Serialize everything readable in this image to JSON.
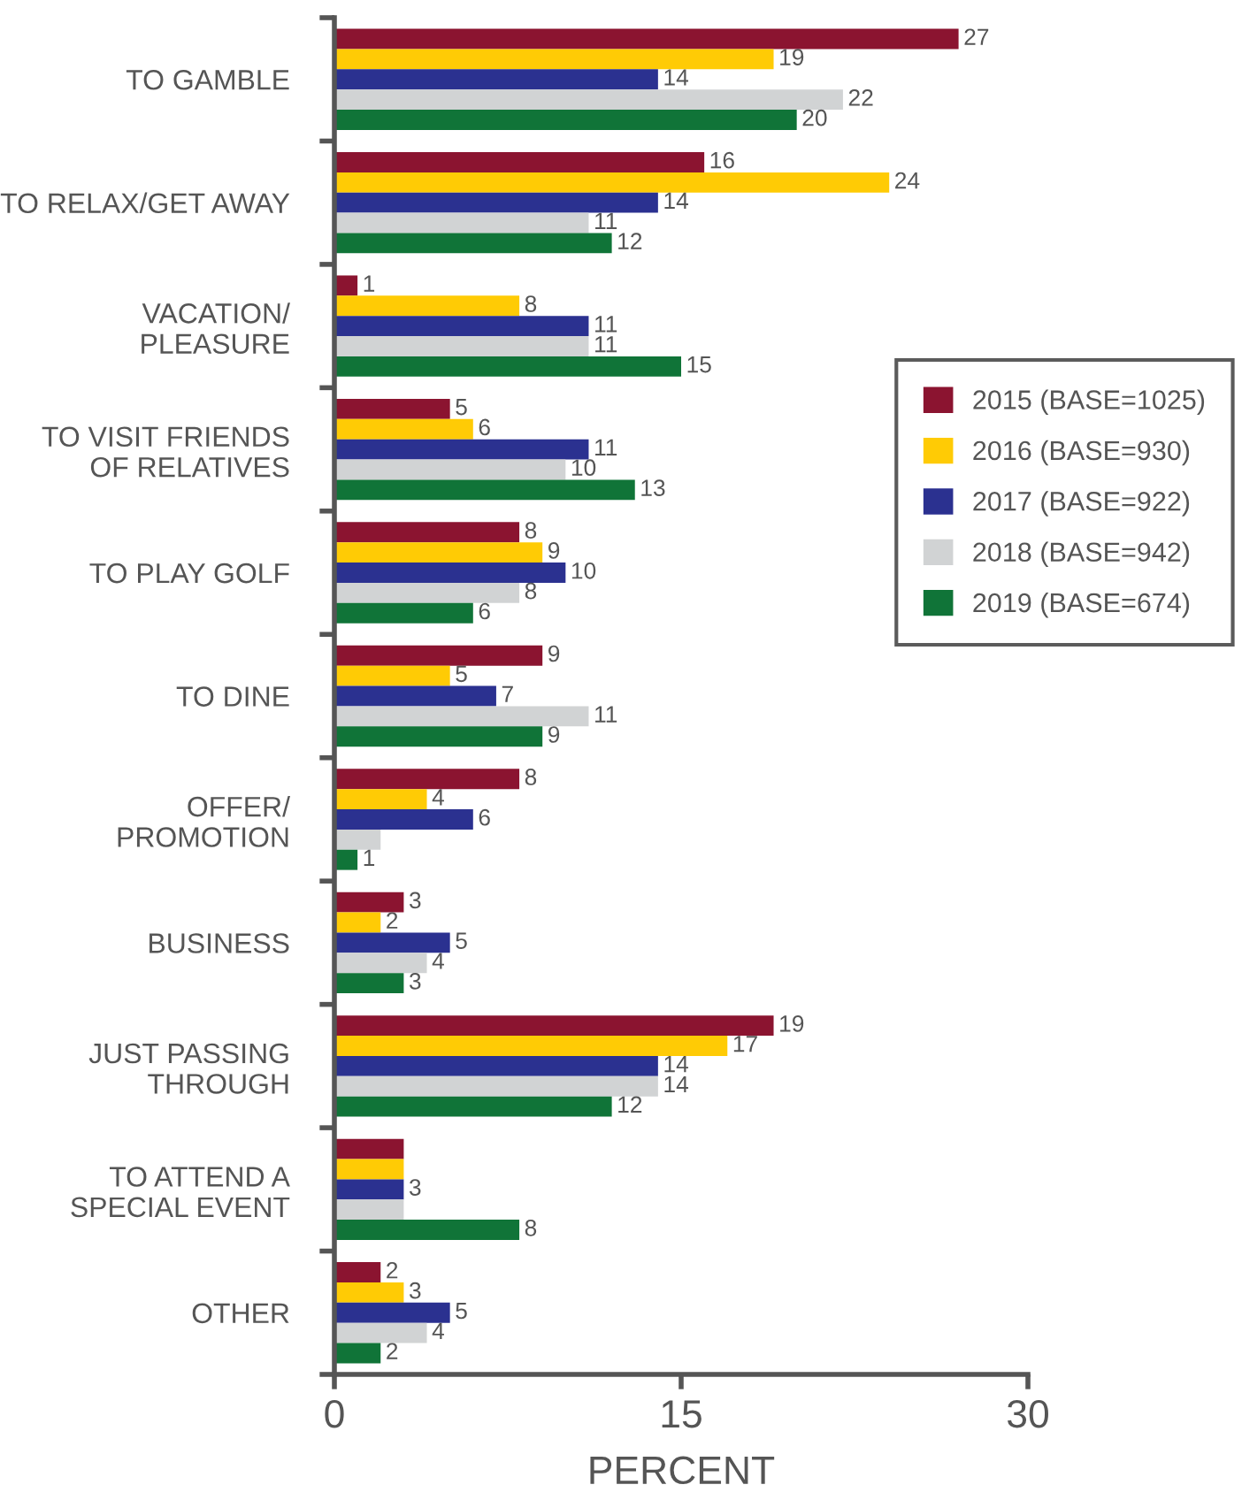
{
  "chart_data": {
    "type": "bar",
    "orientation": "horizontal",
    "xlabel": "PERCENT",
    "categories": [
      "TO GAMBLE",
      "TO RELAX/GET AWAY",
      "VACATION/\nPLEASURE",
      "TO VISIT FRIENDS\nOF RELATIVES",
      "TO PLAY GOLF",
      "TO DINE",
      "OFFER/\nPROMOTION",
      "BUSINESS",
      "JUST PASSING\nTHROUGH",
      "TO ATTEND A\nSPECIAL EVENT",
      "OTHER"
    ],
    "series": [
      {
        "name": "2015 (BASE=1025)",
        "color": "#8b1430",
        "values": [
          27,
          16,
          1,
          5,
          8,
          9,
          8,
          3,
          19,
          3,
          2
        ],
        "value_labels": [
          "27",
          "16",
          "1",
          "5",
          "8",
          "9",
          "8",
          "3",
          "19",
          null,
          "2"
        ]
      },
      {
        "name": "2016 (BASE=930)",
        "color": "#ffcb05",
        "values": [
          19,
          24,
          8,
          6,
          9,
          5,
          4,
          2,
          17,
          3,
          3
        ],
        "value_labels": [
          "19",
          "24",
          "8",
          "6",
          "9",
          "5",
          "4",
          "2",
          "17",
          null,
          "3"
        ]
      },
      {
        "name": "2017 (BASE=922)",
        "color": "#2b3190",
        "values": [
          14,
          14,
          11,
          11,
          10,
          7,
          6,
          5,
          14,
          3,
          5
        ],
        "value_labels": [
          "14",
          "14",
          "11",
          "11",
          "10",
          "7",
          "6",
          "5",
          "14",
          "3",
          "5"
        ]
      },
      {
        "name": "2018 (BASE=942)",
        "color": "#d1d3d4",
        "values": [
          22,
          11,
          11,
          10,
          8,
          11,
          2,
          4,
          14,
          3,
          4
        ],
        "value_labels": [
          "22",
          "11",
          "11",
          "10",
          "8",
          "11",
          null,
          "4",
          "14",
          null,
          "4"
        ]
      },
      {
        "name": "2019 (BASE=674)",
        "color": "#107438",
        "values": [
          20,
          12,
          15,
          13,
          6,
          9,
          1,
          3,
          12,
          8,
          2
        ],
        "value_labels": [
          "20",
          "12",
          "15",
          "13",
          "6",
          "9",
          "1",
          "3",
          "12",
          "8",
          "2"
        ]
      }
    ],
    "xlim": [
      0,
      30
    ],
    "xticks": [
      0,
      15,
      30
    ],
    "grid": false,
    "legend": "right"
  }
}
